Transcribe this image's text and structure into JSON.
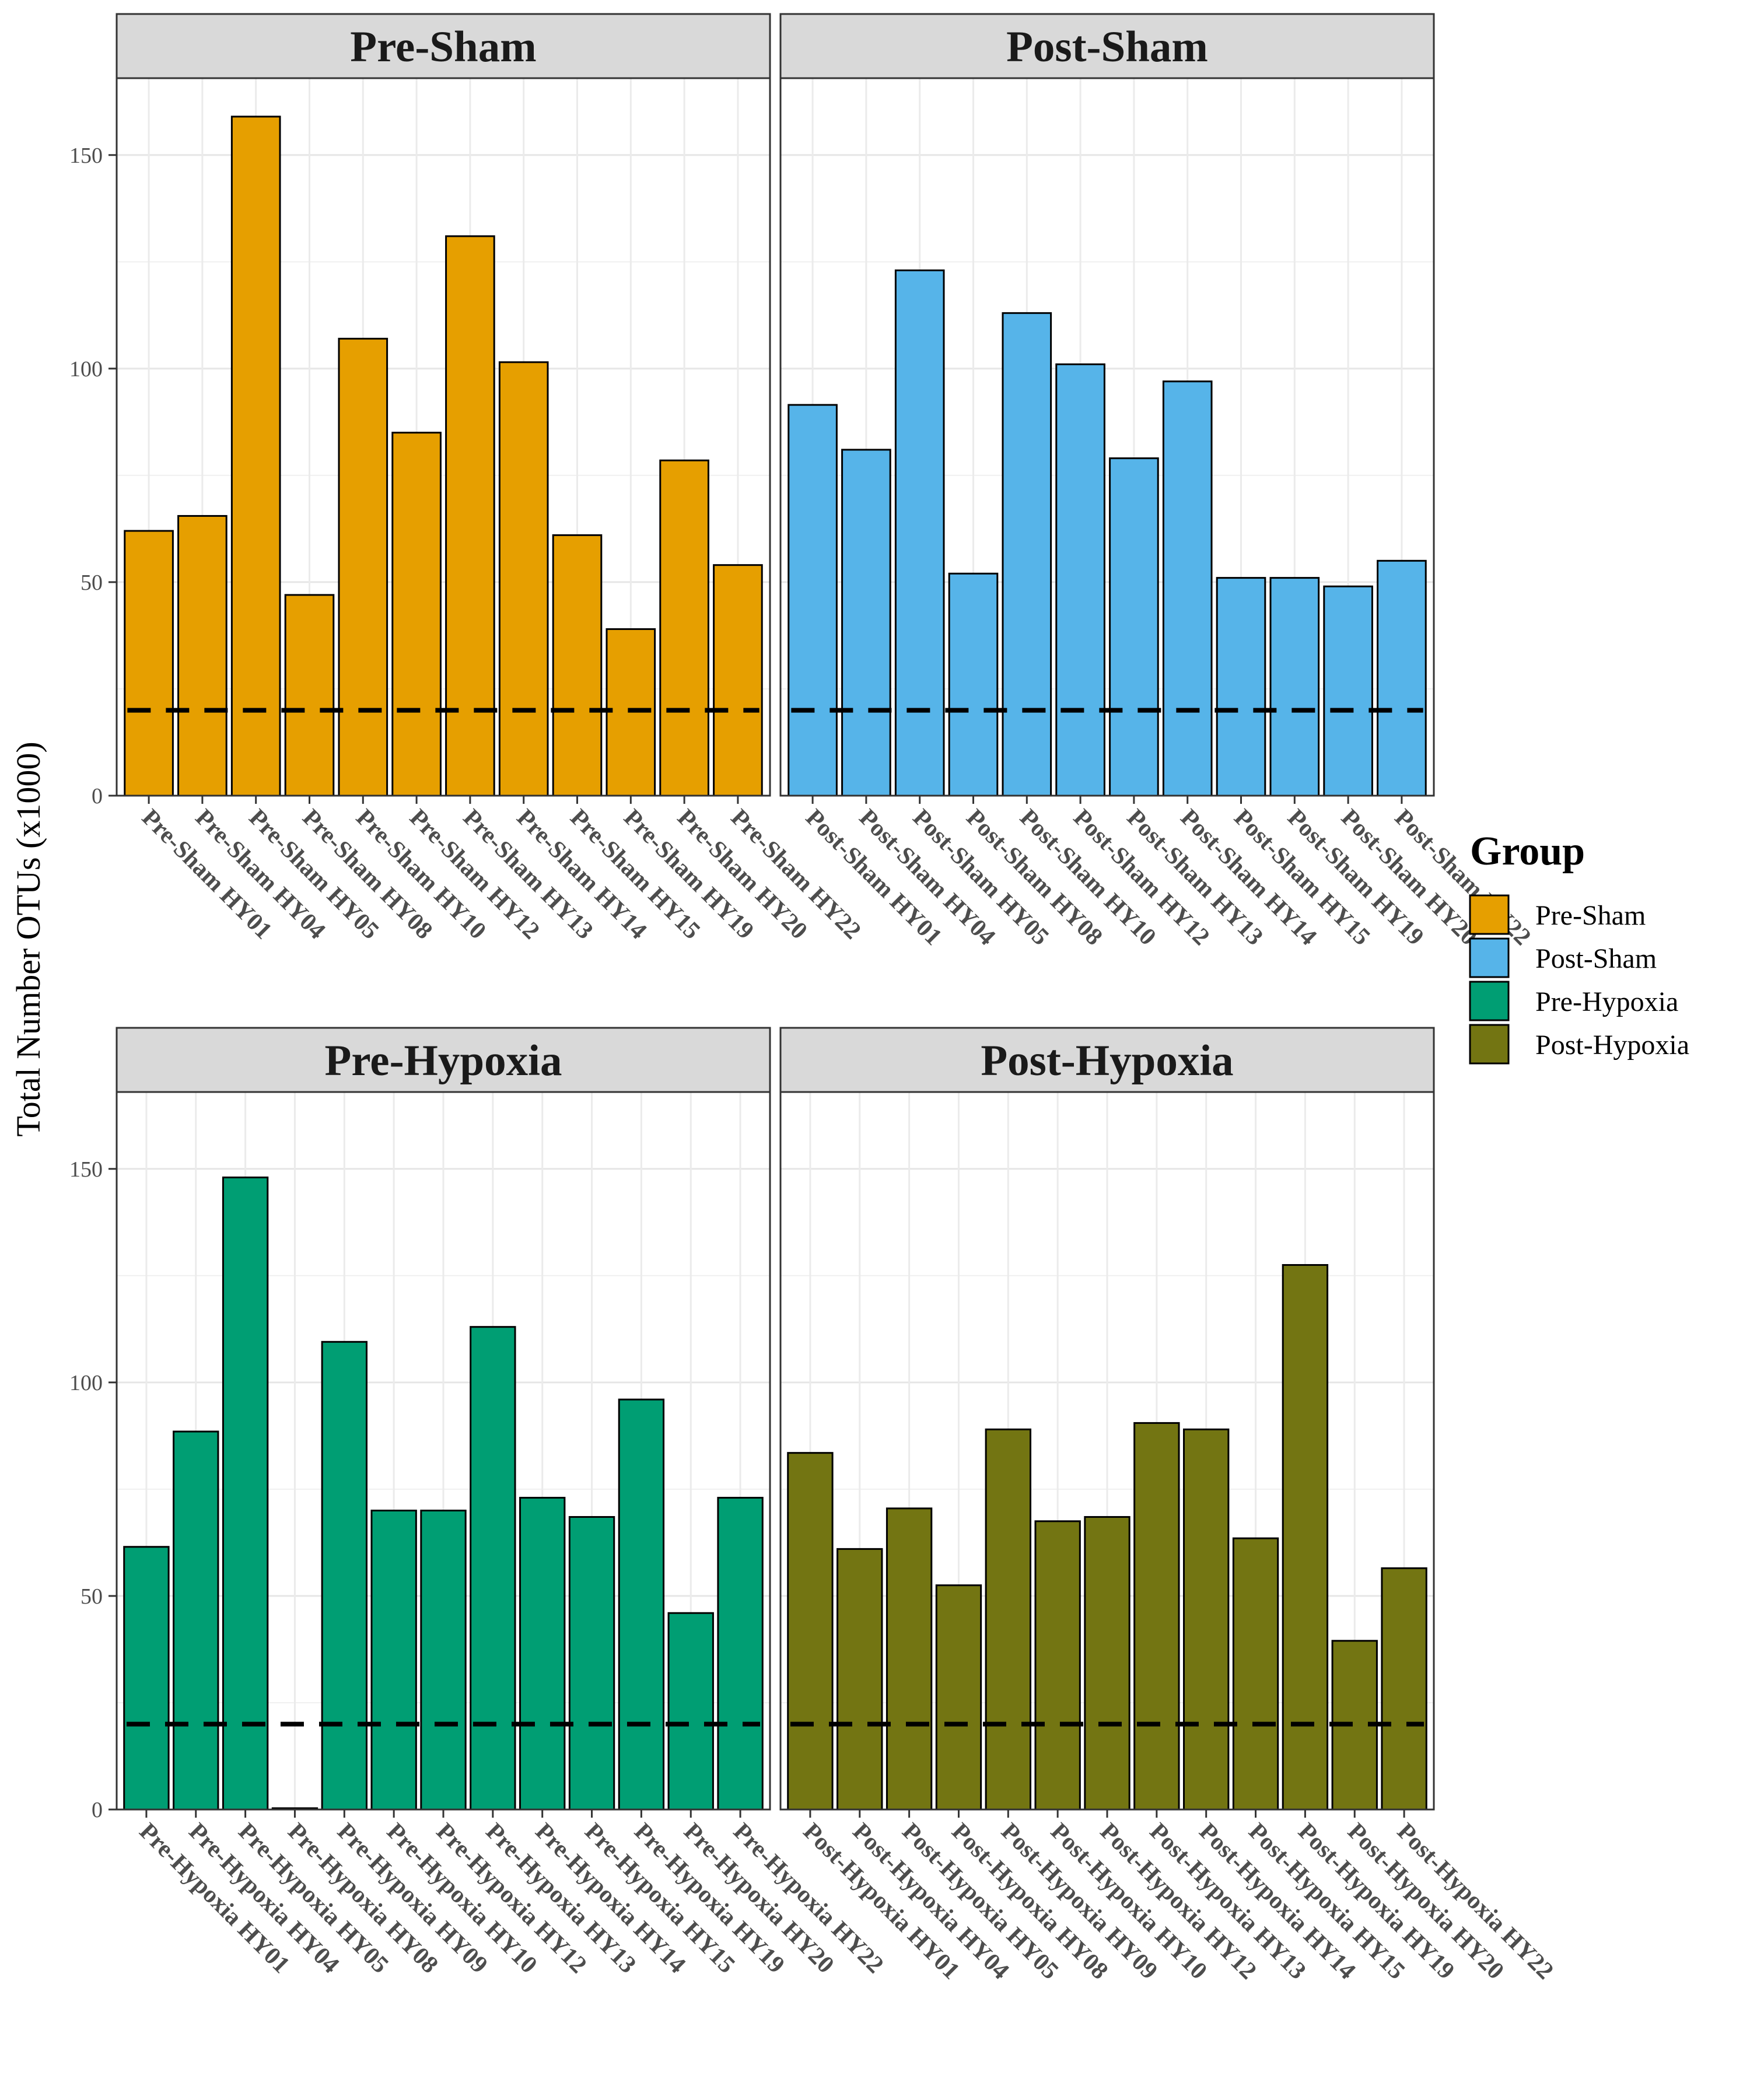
{
  "chart_data": {
    "type": "bar",
    "ylabel": "Total Number OTUs (x1000)",
    "xlabel": "",
    "ylim": [
      0,
      168
    ],
    "yticks": [
      0,
      50,
      100,
      150
    ],
    "reference_line": {
      "y": 20,
      "style": "dashed",
      "color": "#000000"
    },
    "grid": true,
    "legend": {
      "title": "Group",
      "position": "right",
      "entries": [
        {
          "label": "Pre-Sham",
          "color": "#E69F00"
        },
        {
          "label": "Post-Sham",
          "color": "#56B4E9"
        },
        {
          "label": "Pre-Hypoxia",
          "color": "#009E73"
        },
        {
          "label": "Post-Hypoxia",
          "color": "#737512"
        }
      ]
    },
    "panels": [
      {
        "title": "Pre-Sham",
        "color": "#E69F00",
        "categories": [
          "Pre-Sham HY01",
          "Pre-Sham HY04",
          "Pre-Sham HY05",
          "Pre-Sham HY08",
          "Pre-Sham HY10",
          "Pre-Sham HY12",
          "Pre-Sham HY13",
          "Pre-Sham HY14",
          "Pre-Sham HY15",
          "Pre-Sham HY19",
          "Pre-Sham HY20",
          "Pre-Sham HY22"
        ],
        "values": [
          62,
          65.5,
          159,
          47,
          107,
          85,
          131,
          101.5,
          61,
          39,
          78.5,
          54
        ]
      },
      {
        "title": "Post-Sham",
        "color": "#56B4E9",
        "categories": [
          "Post-Sham HY01",
          "Post-Sham HY04",
          "Post-Sham HY05",
          "Post-Sham HY08",
          "Post-Sham HY10",
          "Post-Sham HY12",
          "Post-Sham HY13",
          "Post-Sham HY14",
          "Post-Sham HY15",
          "Post-Sham HY19",
          "Post-Sham HY20",
          "Post-Sham HY22"
        ],
        "values": [
          91.5,
          81,
          123,
          52,
          113,
          101,
          79,
          97,
          51,
          51,
          49,
          55
        ]
      },
      {
        "title": "Pre-Hypoxia",
        "color": "#009E73",
        "categories": [
          "Pre-Hypoxia HY01",
          "Pre-Hypoxia HY04",
          "Pre-Hypoxia HY05",
          "Pre-Hypoxia HY08",
          "Pre-Hypoxia HY09",
          "Pre-Hypoxia HY10",
          "Pre-Hypoxia HY12",
          "Pre-Hypoxia HY13",
          "Pre-Hypoxia HY14",
          "Pre-Hypoxia HY15",
          "Pre-Hypoxia HY19",
          "Pre-Hypoxia HY20",
          "Pre-Hypoxia HY22"
        ],
        "values": [
          61.5,
          88.5,
          148,
          0.3,
          109.5,
          70,
          70,
          113,
          73,
          68.5,
          96,
          46,
          73
        ]
      },
      {
        "title": "Post-Hypoxia",
        "color": "#737512",
        "categories": [
          "Post-Hypoxia HY01",
          "Post-Hypoxia HY04",
          "Post-Hypoxia HY05",
          "Post-Hypoxia HY08",
          "Post-Hypoxia HY09",
          "Post-Hypoxia HY10",
          "Post-Hypoxia HY12",
          "Post-Hypoxia HY13",
          "Post-Hypoxia HY14",
          "Post-Hypoxia HY15",
          "Post-Hypoxia HY19",
          "Post-Hypoxia HY20",
          "Post-Hypoxia HY22"
        ],
        "values": [
          83.5,
          61,
          70.5,
          52.5,
          89,
          67.5,
          68.5,
          90.5,
          89,
          63.5,
          127.5,
          39.5,
          56.5
        ]
      }
    ]
  }
}
